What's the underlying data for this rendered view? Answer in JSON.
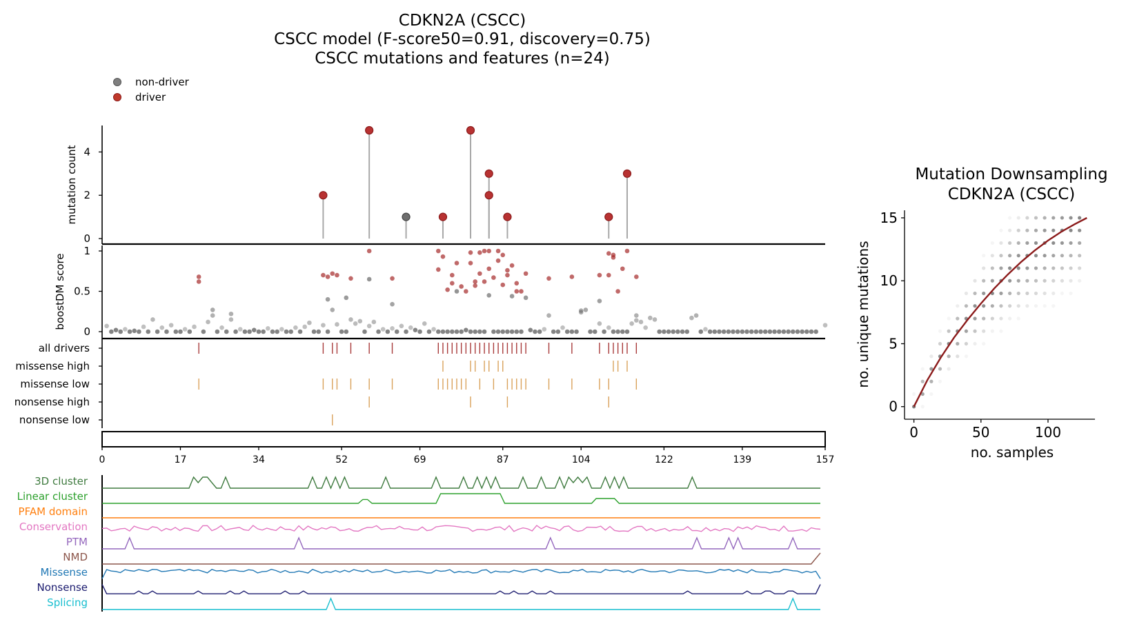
{
  "title": {
    "line1": "CDKN2A (CSCC)",
    "line2": "CSCC model (F-score50=0.91, discovery=0.75)",
    "line3": "CSCC mutations and features (n=24)"
  },
  "legend": [
    {
      "label": "non-driver",
      "color": "#7f7f7f"
    },
    {
      "label": "driver",
      "color": "#c0392b"
    }
  ],
  "colors": {
    "driver": "#b83232",
    "nondriver": "#6e6e6e",
    "stem": "#a8a8a8",
    "driver_track": "#a83a3a",
    "csq_track": "#d9a15a",
    "fit": "#8b1a1a"
  },
  "chart_data": [
    {
      "type": "scatter",
      "name": "lollipop",
      "ylabel": "mutation count",
      "ylim": [
        0,
        5.3
      ],
      "yticks": [
        "0",
        "2",
        "4"
      ],
      "points": [
        {
          "pos": 48,
          "count": 2,
          "driver": true
        },
        {
          "pos": 58,
          "count": 5,
          "driver": true
        },
        {
          "pos": 66,
          "count": 1,
          "driver": false
        },
        {
          "pos": 74,
          "count": 1,
          "driver": true
        },
        {
          "pos": 80,
          "count": 5,
          "driver": true
        },
        {
          "pos": 84,
          "count": 3,
          "driver": true
        },
        {
          "pos": 84,
          "count": 2,
          "driver": true
        },
        {
          "pos": 88,
          "count": 1,
          "driver": true
        },
        {
          "pos": 110,
          "count": 1,
          "driver": true
        },
        {
          "pos": 114,
          "count": 3,
          "driver": true
        }
      ]
    },
    {
      "type": "scatter",
      "name": "boostdm",
      "ylabel": "boostDM score",
      "ylim": [
        0,
        1.05
      ],
      "yticks": [
        "0",
        "0.5",
        "1"
      ],
      "driver_points": [
        [
          21,
          0.68
        ],
        [
          21,
          0.62
        ],
        [
          48,
          0.7
        ],
        [
          49,
          0.68
        ],
        [
          50,
          0.72
        ],
        [
          51,
          0.7
        ],
        [
          54,
          0.66
        ],
        [
          58,
          1.0
        ],
        [
          63,
          0.66
        ],
        [
          73,
          0.77
        ],
        [
          73,
          1.0
        ],
        [
          74,
          0.93
        ],
        [
          75,
          0.52
        ],
        [
          76,
          0.7
        ],
        [
          76,
          0.6
        ],
        [
          77,
          0.85
        ],
        [
          78,
          0.56
        ],
        [
          79,
          0.5
        ],
        [
          80,
          0.98
        ],
        [
          80,
          0.85
        ],
        [
          81,
          0.62
        ],
        [
          81,
          0.57
        ],
        [
          82,
          0.98
        ],
        [
          82,
          0.72
        ],
        [
          83,
          0.62
        ],
        [
          83,
          1.0
        ],
        [
          84,
          1.0
        ],
        [
          84,
          0.78
        ],
        [
          85,
          0.67
        ],
        [
          86,
          1.0
        ],
        [
          86,
          0.88
        ],
        [
          87,
          0.95
        ],
        [
          87,
          0.58
        ],
        [
          88,
          0.76
        ],
        [
          88,
          0.7
        ],
        [
          89,
          0.82
        ],
        [
          90,
          0.5
        ],
        [
          90,
          0.6
        ],
        [
          91,
          0.5
        ],
        [
          92,
          0.72
        ],
        [
          97,
          0.66
        ],
        [
          102,
          0.68
        ],
        [
          108,
          0.7
        ],
        [
          110,
          0.97
        ],
        [
          110,
          0.7
        ],
        [
          111,
          0.92
        ],
        [
          111,
          0.95
        ],
        [
          112,
          0.5
        ],
        [
          113,
          0.78
        ],
        [
          114,
          1.0
        ],
        [
          116,
          0.68
        ]
      ],
      "nondriver_points": [
        [
          1,
          0.07
        ],
        [
          2,
          0.0
        ],
        [
          3,
          0.02
        ],
        [
          4,
          0.0
        ],
        [
          5,
          0.03
        ],
        [
          6,
          0.0
        ],
        [
          7,
          0.01
        ],
        [
          8,
          0.0
        ],
        [
          9,
          0.06
        ],
        [
          10,
          0.0
        ],
        [
          11,
          0.15
        ],
        [
          12,
          0.0
        ],
        [
          13,
          0.05
        ],
        [
          14,
          0.0
        ],
        [
          15,
          0.08
        ],
        [
          16,
          0.0
        ],
        [
          17,
          0.0
        ],
        [
          18,
          0.03
        ],
        [
          19,
          0.0
        ],
        [
          20,
          0.06
        ],
        [
          22,
          0.0
        ],
        [
          23,
          0.12
        ],
        [
          24,
          0.27
        ],
        [
          24,
          0.2
        ],
        [
          25,
          0.0
        ],
        [
          26,
          0.05
        ],
        [
          27,
          0.0
        ],
        [
          28,
          0.22
        ],
        [
          28,
          0.15
        ],
        [
          29,
          0.0
        ],
        [
          30,
          0.03
        ],
        [
          31,
          0.0
        ],
        [
          32,
          0.0
        ],
        [
          33,
          0.02
        ],
        [
          34,
          0.0
        ],
        [
          35,
          0.0
        ],
        [
          36,
          0.04
        ],
        [
          37,
          0.0
        ],
        [
          38,
          0.0
        ],
        [
          39,
          0.03
        ],
        [
          40,
          0.0
        ],
        [
          41,
          0.0
        ],
        [
          42,
          0.05
        ],
        [
          43,
          0.0
        ],
        [
          44,
          0.06
        ],
        [
          45,
          0.11
        ],
        [
          46,
          0.0
        ],
        [
          47,
          0.0
        ],
        [
          48,
          0.08
        ],
        [
          49,
          0.4
        ],
        [
          49,
          0.0
        ],
        [
          50,
          0.27
        ],
        [
          51,
          0.09
        ],
        [
          52,
          0.0
        ],
        [
          53,
          0.42
        ],
        [
          53,
          0.0
        ],
        [
          54,
          0.15
        ],
        [
          55,
          0.1
        ],
        [
          56,
          0.13
        ],
        [
          57,
          0.0
        ],
        [
          58,
          0.65
        ],
        [
          58,
          0.07
        ],
        [
          59,
          0.12
        ],
        [
          60,
          0.0
        ],
        [
          61,
          0.03
        ],
        [
          62,
          0.0
        ],
        [
          63,
          0.34
        ],
        [
          63,
          0.04
        ],
        [
          64,
          0.0
        ],
        [
          65,
          0.07
        ],
        [
          66,
          0.0
        ],
        [
          67,
          0.05
        ],
        [
          68,
          0.02
        ],
        [
          69,
          0.0
        ],
        [
          70,
          0.1
        ],
        [
          71,
          0.0
        ],
        [
          72,
          0.03
        ],
        [
          73,
          0.0
        ],
        [
          74,
          0.0
        ],
        [
          75,
          0.0
        ],
        [
          76,
          0.0
        ],
        [
          77,
          0.5
        ],
        [
          77,
          0.0
        ],
        [
          78,
          0.0
        ],
        [
          79,
          0.02
        ],
        [
          80,
          0.0
        ],
        [
          81,
          0.0
        ],
        [
          82,
          0.0
        ],
        [
          83,
          0.0
        ],
        [
          84,
          0.45
        ],
        [
          85,
          0.0
        ],
        [
          86,
          0.0
        ],
        [
          87,
          0.0
        ],
        [
          88,
          0.0
        ],
        [
          89,
          0.44
        ],
        [
          89,
          0.0
        ],
        [
          90,
          0.0
        ],
        [
          91,
          0.0
        ],
        [
          92,
          0.42
        ],
        [
          93,
          0.02
        ],
        [
          94,
          0.0
        ],
        [
          95,
          0.0
        ],
        [
          96,
          0.03
        ],
        [
          97,
          0.2
        ],
        [
          98,
          0.0
        ],
        [
          99,
          0.0
        ],
        [
          100,
          0.05
        ],
        [
          101,
          0.0
        ],
        [
          102,
          0.0
        ],
        [
          103,
          0.0
        ],
        [
          104,
          0.26
        ],
        [
          104,
          0.24
        ],
        [
          105,
          0.27
        ],
        [
          106,
          0.0
        ],
        [
          107,
          0.0
        ],
        [
          108,
          0.38
        ],
        [
          108,
          0.1
        ],
        [
          109,
          0.0
        ],
        [
          110,
          0.05
        ],
        [
          111,
          0.0
        ],
        [
          112,
          0.0
        ],
        [
          113,
          0.0
        ],
        [
          114,
          0.0
        ],
        [
          115,
          0.1
        ],
        [
          116,
          0.2
        ],
        [
          116,
          0.14
        ],
        [
          117,
          0.12
        ],
        [
          118,
          0.05
        ],
        [
          119,
          0.17
        ],
        [
          120,
          0.15
        ],
        [
          121,
          0.0
        ],
        [
          122,
          0.0
        ],
        [
          123,
          0.0
        ],
        [
          124,
          0.0
        ],
        [
          125,
          0.0
        ],
        [
          126,
          0.0
        ],
        [
          127,
          0.0
        ],
        [
          128,
          0.17
        ],
        [
          129,
          0.2
        ],
        [
          130,
          0.0
        ],
        [
          131,
          0.03
        ],
        [
          132,
          0.0
        ],
        [
          133,
          0.0
        ],
        [
          134,
          0.0
        ],
        [
          135,
          0.0
        ],
        [
          136,
          0.0
        ],
        [
          137,
          0.0
        ],
        [
          138,
          0.0
        ],
        [
          139,
          0.0
        ],
        [
          140,
          0.0
        ],
        [
          141,
          0.0
        ],
        [
          142,
          0.0
        ],
        [
          143,
          0.0
        ],
        [
          144,
          0.0
        ],
        [
          145,
          0.0
        ],
        [
          146,
          0.0
        ],
        [
          147,
          0.0
        ],
        [
          148,
          0.0
        ],
        [
          149,
          0.0
        ],
        [
          150,
          0.0
        ],
        [
          151,
          0.0
        ],
        [
          152,
          0.0
        ],
        [
          153,
          0.0
        ],
        [
          154,
          0.0
        ],
        [
          155,
          0.0
        ],
        [
          157,
          0.08
        ]
      ]
    },
    {
      "type": "table",
      "name": "consequence_tracks",
      "rows": [
        {
          "label": "all drivers",
          "color_key": "driver_track",
          "positions": [
            21,
            48,
            50,
            51,
            54,
            58,
            63,
            73,
            74,
            75,
            76,
            77,
            78,
            79,
            80,
            81,
            82,
            83,
            84,
            85,
            86,
            87,
            88,
            89,
            90,
            91,
            92,
            97,
            102,
            108,
            110,
            111,
            112,
            113,
            114,
            116
          ]
        },
        {
          "label": "missense high",
          "color_key": "csq_track",
          "positions": [
            74,
            80,
            81,
            83,
            84,
            86,
            87,
            111,
            112,
            114
          ]
        },
        {
          "label": "missense low",
          "color_key": "csq_track",
          "positions": [
            21,
            48,
            50,
            51,
            54,
            58,
            63,
            73,
            74,
            75,
            76,
            77,
            78,
            79,
            82,
            85,
            88,
            89,
            90,
            91,
            92,
            97,
            102,
            108,
            110,
            116
          ]
        },
        {
          "label": "nonsense high",
          "color_key": "csq_track",
          "positions": [
            58,
            80,
            88,
            110
          ]
        },
        {
          "label": "nonsense low",
          "color_key": "csq_track",
          "positions": [
            50
          ]
        }
      ]
    },
    {
      "type": "line",
      "name": "protein_axis",
      "xlim": [
        0,
        157
      ],
      "xticks": [
        "0",
        "17",
        "34",
        "52",
        "69",
        "87",
        "104",
        "122",
        "139",
        "157"
      ]
    },
    {
      "type": "line",
      "name": "features",
      "series": [
        {
          "name": "3D cluster",
          "color": "#3e7a3e",
          "peaks": [
            [
              20,
              1
            ],
            [
              21.5,
              1
            ],
            [
              22.5,
              1
            ],
            [
              27,
              1
            ],
            [
              46,
              1
            ],
            [
              49,
              1
            ],
            [
              51,
              1
            ],
            [
              53,
              1
            ],
            [
              62,
              1
            ],
            [
              73,
              1
            ],
            [
              79,
              1
            ],
            [
              82,
              1
            ],
            [
              84,
              1
            ],
            [
              86,
              1
            ],
            [
              92,
              1
            ],
            [
              96,
              1
            ],
            [
              100,
              1
            ],
            [
              102,
              1
            ],
            [
              103.5,
              1
            ],
            [
              106,
              1
            ],
            [
              110,
              1
            ],
            [
              112,
              1
            ],
            [
              114,
              1
            ],
            [
              129,
              1
            ]
          ]
        },
        {
          "name": "Linear cluster",
          "color": "#2ca02c",
          "plateaus": [
            [
              57,
              58,
              0.4
            ],
            [
              74,
              87,
              1
            ],
            [
              108,
              112,
              0.5
            ]
          ]
        },
        {
          "name": "PFAM domain",
          "color": "#ff7f0e",
          "flat": 0.5
        },
        {
          "name": "Conservation",
          "color": "#e377c2",
          "noise": 0.5
        },
        {
          "name": "PTM",
          "color": "#9467bd",
          "peaks": [
            [
              6,
              1
            ],
            [
              43,
              1
            ],
            [
              98,
              1
            ],
            [
              130,
              1
            ],
            [
              137,
              1
            ],
            [
              139,
              1
            ],
            [
              151,
              1
            ]
          ]
        },
        {
          "name": "NMD",
          "color": "#8c564b",
          "ramp_end": true
        },
        {
          "name": "Missense",
          "color": "#1f77b4",
          "noise": 0.6
        },
        {
          "name": "Nonsense",
          "color": "#1a1a6e",
          "noise": 0.1
        },
        {
          "name": "Splicing",
          "color": "#17becf",
          "peaks": [
            [
              50,
              1
            ],
            [
              151,
              1
            ]
          ]
        }
      ]
    },
    {
      "type": "scatter",
      "name": "downsampling",
      "title": "Mutation Downsampling",
      "subtitle": "CDKN2A (CSCC)",
      "xlabel": "no. samples",
      "ylabel": "no. unique mutations",
      "xlim": [
        -7,
        135
      ],
      "ylim": [
        -1,
        15.6
      ],
      "xticks": [
        "0",
        "50",
        "100"
      ],
      "yticks": [
        "0",
        "5",
        "10",
        "15"
      ],
      "fit": [
        [
          0,
          0
        ],
        [
          10,
          2.1
        ],
        [
          20,
          3.9
        ],
        [
          30,
          5.5
        ],
        [
          40,
          6.9
        ],
        [
          50,
          8.2
        ],
        [
          60,
          9.4
        ],
        [
          70,
          10.5
        ],
        [
          80,
          11.5
        ],
        [
          90,
          12.4
        ],
        [
          100,
          13.2
        ],
        [
          110,
          13.9
        ],
        [
          120,
          14.5
        ],
        [
          129,
          15
        ]
      ]
    }
  ]
}
